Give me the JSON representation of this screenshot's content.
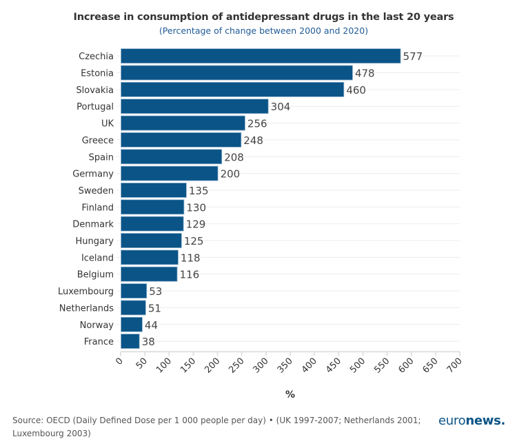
{
  "chart_data": {
    "type": "bar",
    "orientation": "horizontal",
    "title": "Increase in consumption of antidepressant drugs in the last 20 years",
    "subtitle": "(Percentage of change between 2000 and 2020)",
    "xlabel": "%",
    "ylabel": "",
    "xlim": [
      0,
      700
    ],
    "xticks": [
      0,
      50,
      100,
      150,
      200,
      250,
      300,
      350,
      400,
      450,
      500,
      550,
      600,
      650,
      700
    ],
    "grid": true,
    "legend": "none",
    "categories": [
      "Czechia",
      "Estonia",
      "Slovakia",
      "Portugal",
      "UK",
      "Greece",
      "Spain",
      "Germany",
      "Sweden",
      "Finland",
      "Denmark",
      "Hungary",
      "Iceland",
      "Belgium",
      "Luxembourg",
      "Netherlands",
      "Norway",
      "France"
    ],
    "values": [
      577,
      478,
      460,
      304,
      256,
      248,
      208,
      200,
      135,
      130,
      129,
      125,
      118,
      116,
      53,
      51,
      44,
      38
    ],
    "bar_color": "#0a5487"
  },
  "footer": {
    "source": "Source: OECD (Daily Defined Dose per 1 000 people per day) • (UK 1997-2007; Netherlands 2001; Luxembourg 2003)",
    "logo_light": "euro",
    "logo_bold": "news",
    "logo_dot": "."
  }
}
